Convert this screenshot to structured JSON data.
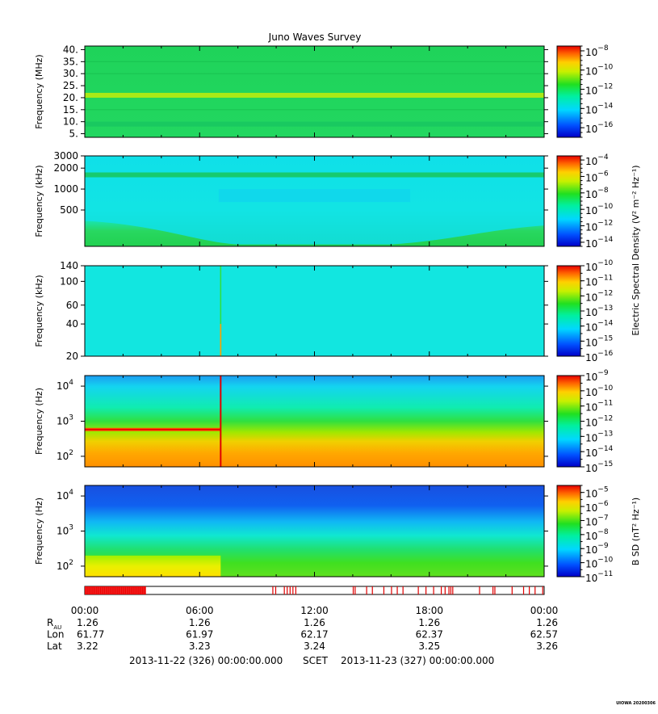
{
  "title": "Juno Waves Survey",
  "footer_mark": "UIOWA 20200306",
  "colorbar_labels": {
    "electric": "Electric Spectral Density (V² m⁻² Hz⁻¹)",
    "magnetic": "B SD (nT² Hz⁻¹)"
  },
  "time_axis": {
    "ticks": [
      "00:00",
      "06:00",
      "12:00",
      "18:00",
      "00:00"
    ],
    "rows": [
      {
        "label": "R",
        "sub": "AU",
        "values": [
          "1.26",
          "1.26",
          "1.26",
          "1.26",
          "1.26"
        ]
      },
      {
        "label": "Lon",
        "sub": "",
        "values": [
          "61.77",
          "61.97",
          "62.17",
          "62.37",
          "62.57"
        ]
      },
      {
        "label": "Lat",
        "sub": "",
        "values": [
          "3.22",
          "3.23",
          "3.24",
          "3.25",
          "3.26"
        ]
      }
    ],
    "range_start": "2013-11-22 (326) 00:00:00.000",
    "range_mid": "SCET",
    "range_end": "2013-11-23 (327) 00:00:00.000"
  },
  "chart_data": [
    {
      "type": "heatmap",
      "ylabel": "Frequency (MHz)",
      "yscale": "linear",
      "ylim": [
        3.5,
        41.5
      ],
      "yticks": [
        {
          "value": 5,
          "label": "5."
        },
        {
          "value": 10,
          "label": "10."
        },
        {
          "value": 15,
          "label": "15."
        },
        {
          "value": 20,
          "label": "20."
        },
        {
          "value": 25,
          "label": "25."
        },
        {
          "value": 30,
          "label": "30."
        },
        {
          "value": 35,
          "label": "35."
        },
        {
          "value": 40,
          "label": "40."
        }
      ],
      "xlim_hours": [
        0,
        24
      ],
      "colorbar": {
        "base": "10",
        "ticks": [
          -8,
          -10,
          -12,
          -14,
          -16
        ],
        "range": [
          -17,
          -7.5
        ]
      },
      "features": [
        {
          "kind": "band",
          "freq": 21,
          "level": "yellow-green"
        },
        {
          "kind": "band",
          "freq": 9,
          "level": "green"
        }
      ]
    },
    {
      "type": "heatmap",
      "ylabel": "Frequency (kHz)",
      "yscale": "log",
      "ylim": [
        150,
        3000
      ],
      "yticks": [
        {
          "value": 500,
          "label": "500"
        },
        {
          "value": 1000,
          "label": "1000"
        },
        {
          "value": 2000,
          "label": "2000"
        },
        {
          "value": 3000,
          "label": "3000"
        }
      ],
      "xlim_hours": [
        0,
        24
      ],
      "colorbar": {
        "base": "10",
        "ticks": [
          -4,
          -6,
          -8,
          -10,
          -12,
          -14
        ],
        "range": [
          -14.5,
          -3.5
        ]
      },
      "features": [
        {
          "kind": "band",
          "freq": 1600,
          "level": "green"
        },
        {
          "kind": "curve",
          "description_hours": [
            0,
            8,
            16,
            24
          ],
          "freq_khz": [
            350,
            160,
            160,
            300
          ]
        }
      ]
    },
    {
      "type": "heatmap",
      "ylabel": "Frequency (kHz)",
      "yscale": "log",
      "ylim": [
        20,
        140
      ],
      "yticks": [
        {
          "value": 20,
          "label": "20"
        },
        {
          "value": 40,
          "label": "40"
        },
        {
          "value": 60,
          "label": "60"
        },
        {
          "value": 100,
          "label": "100"
        },
        {
          "value": 140,
          "label": "140"
        }
      ],
      "xlim_hours": [
        0,
        24
      ],
      "colorbar": {
        "base": "10",
        "ticks": [
          -10,
          -11,
          -12,
          -13,
          -14,
          -15,
          -16
        ],
        "range": [
          -16,
          -10
        ]
      },
      "features": [
        {
          "kind": "spike",
          "hour": 7.1,
          "level": "yellow-red"
        }
      ]
    },
    {
      "type": "heatmap",
      "ylabel": "Frequency (Hz)",
      "yscale": "log",
      "ylim": [
        50,
        20000
      ],
      "yticks": [
        {
          "value": 100,
          "label": "10",
          "exp": "2"
        },
        {
          "value": 1000,
          "label": "10",
          "exp": "3"
        },
        {
          "value": 10000,
          "label": "10",
          "exp": "4"
        }
      ],
      "xlim_hours": [
        0,
        24
      ],
      "colorbar": {
        "base": "10",
        "ticks": [
          -9,
          -10,
          -11,
          -12,
          -13,
          -14,
          -15
        ],
        "range": [
          -15,
          -9
        ]
      },
      "features": [
        {
          "kind": "line",
          "freq": 580,
          "hours": [
            0,
            7.1
          ],
          "level": "red"
        },
        {
          "kind": "spike",
          "hour": 7.1,
          "level": "red"
        }
      ]
    },
    {
      "type": "heatmap",
      "ylabel": "Frequency (Hz)",
      "yscale": "log",
      "ylim": [
        50,
        20000
      ],
      "yticks": [
        {
          "value": 100,
          "label": "10",
          "exp": "2"
        },
        {
          "value": 1000,
          "label": "10",
          "exp": "3"
        },
        {
          "value": 10000,
          "label": "10",
          "exp": "4"
        }
      ],
      "xlim_hours": [
        0,
        24
      ],
      "colorbar": {
        "base": "10",
        "ticks": [
          -5,
          -6,
          -7,
          -8,
          -9,
          -10,
          -11
        ],
        "range": [
          -11,
          -4.5
        ]
      },
      "features": [
        {
          "kind": "enhanced_low_band",
          "hours": [
            0,
            7.1
          ],
          "freq_max": 200,
          "level": "yellow"
        }
      ]
    }
  ],
  "mode_bar": {
    "hours": [
      0.0,
      0.1,
      0.2,
      0.3,
      0.4,
      0.5,
      0.6,
      0.7,
      0.8,
      0.9,
      1.0,
      1.1,
      1.2,
      1.3,
      1.4,
      1.5,
      1.6,
      1.7,
      1.8,
      1.9,
      2.0,
      2.1,
      2.2,
      2.3,
      2.4,
      2.5,
      2.6,
      2.7,
      2.8,
      2.9,
      3.0,
      3.1,
      9.8,
      9.95,
      10.4,
      10.55,
      10.7,
      10.85,
      11.0,
      14.0,
      14.1,
      14.7,
      15.0,
      15.6,
      16.0,
      16.3,
      16.6,
      17.4,
      17.8,
      18.2,
      18.6,
      18.8,
      19.0,
      19.1,
      19.2,
      20.6,
      21.3,
      21.4,
      22.3,
      22.9,
      23.2,
      23.5,
      23.9
    ]
  }
}
